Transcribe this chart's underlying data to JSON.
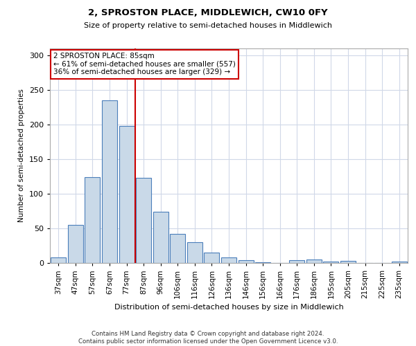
{
  "title": "2, SPROSTON PLACE, MIDDLEWICH, CW10 0FY",
  "subtitle": "Size of property relative to semi-detached houses in Middlewich",
  "xlabel": "Distribution of semi-detached houses by size in Middlewich",
  "ylabel": "Number of semi-detached properties",
  "categories": [
    "37sqm",
    "47sqm",
    "57sqm",
    "67sqm",
    "77sqm",
    "87sqm",
    "96sqm",
    "106sqm",
    "116sqm",
    "126sqm",
    "136sqm",
    "146sqm",
    "156sqm",
    "166sqm",
    "176sqm",
    "186sqm",
    "195sqm",
    "205sqm",
    "215sqm",
    "225sqm",
    "235sqm"
  ],
  "values": [
    8,
    55,
    124,
    235,
    198,
    123,
    74,
    42,
    30,
    15,
    8,
    4,
    1,
    0,
    4,
    5,
    2,
    3,
    0,
    0,
    2
  ],
  "bar_color": "#c9d9e8",
  "bar_edge_color": "#4a7eba",
  "vline_color": "#cc0000",
  "annotation_box_edge_color": "#cc0000",
  "annotation_title": "2 SPROSTON PLACE: 85sqm",
  "annotation_line1": "← 61% of semi-detached houses are smaller (557)",
  "annotation_line2": "36% of semi-detached houses are larger (329) →",
  "vline_x_index": 4.5,
  "ylim": [
    0,
    310
  ],
  "yticks": [
    0,
    50,
    100,
    150,
    200,
    250,
    300
  ],
  "footer_line1": "Contains HM Land Registry data © Crown copyright and database right 2024.",
  "footer_line2": "Contains public sector information licensed under the Open Government Licence v3.0.",
  "background_color": "#ffffff",
  "grid_color": "#d0d8e8"
}
